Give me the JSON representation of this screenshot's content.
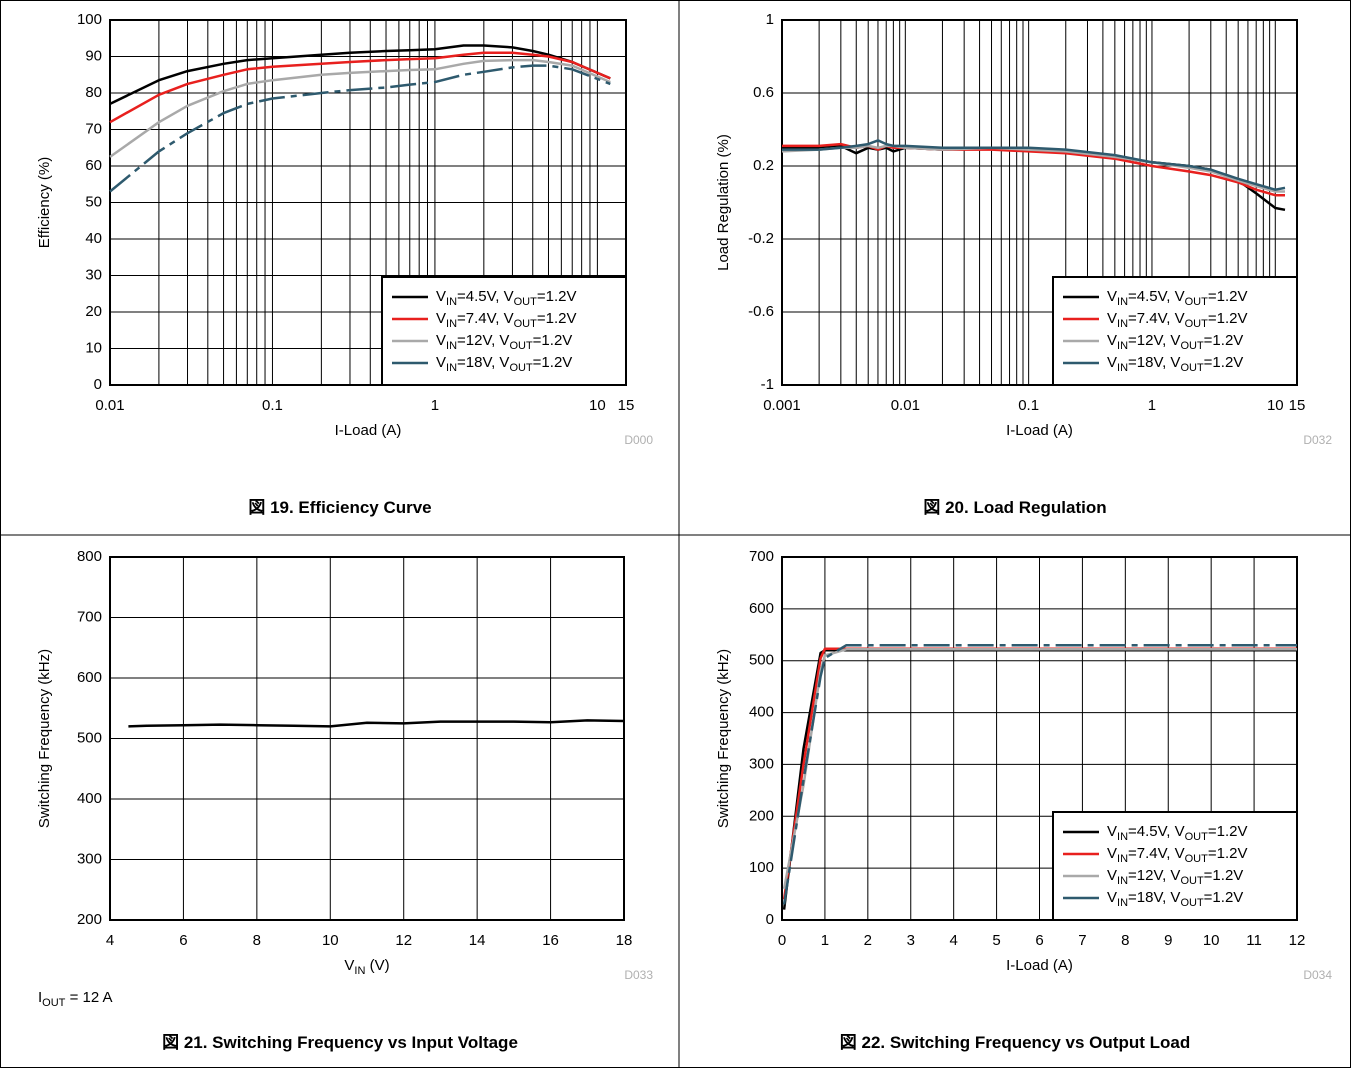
{
  "chart_data": [
    {
      "type": "line",
      "title": "図 19. Efficiency Curve",
      "xlabel": "I-Load (A)",
      "ylabel": "Efficiency (%)",
      "code": "D000",
      "xlog": true,
      "grid": true,
      "legend": "lower right",
      "xlim": [
        0.01,
        15
      ],
      "xticks": [
        0.01,
        0.1,
        1,
        10,
        15
      ],
      "ylim": [
        0,
        100
      ],
      "yticks": [
        0,
        10,
        20,
        30,
        40,
        50,
        60,
        70,
        80,
        90,
        100
      ],
      "x": [
        0.01,
        0.02,
        0.03,
        0.05,
        0.07,
        0.1,
        0.2,
        0.3,
        0.5,
        0.7,
        1,
        1.5,
        2,
        3,
        4,
        5,
        7,
        12
      ],
      "series": [
        {
          "name": "VIN=4.5V, VOUT=1.2V",
          "color": "#000000",
          "style": "solid",
          "values": [
            77,
            83.5,
            86,
            88,
            89,
            89.5,
            90.5,
            91,
            91.5,
            91.7,
            92,
            93,
            93,
            92.5,
            91.5,
            90.5,
            88.5,
            84
          ]
        },
        {
          "name": "VIN=7.4V, VOUT=1.2V",
          "color": "#e8201e",
          "style": "solid",
          "values": [
            72,
            79.5,
            82.5,
            85,
            86.5,
            87.2,
            88,
            88.5,
            89,
            89.3,
            89.5,
            90.5,
            91,
            91,
            90.5,
            90,
            88.5,
            84
          ]
        },
        {
          "name": "VIN=12V, VOUT=1.2V",
          "color": "#a9a9a9",
          "style": "solid",
          "values": [
            62.5,
            72,
            76.5,
            80.5,
            82.5,
            83.5,
            85,
            85.5,
            86,
            86.3,
            86.5,
            88,
            88.8,
            89,
            89,
            88.5,
            87.5,
            83
          ]
        },
        {
          "name": "VIN=18V, VOUT=1.2V",
          "color": "#2e5a6e",
          "style": "dashdot",
          "values": [
            53,
            64,
            69,
            74.5,
            77,
            78.5,
            80,
            80.8,
            81.5,
            82.3,
            83,
            85,
            85.8,
            87,
            87.5,
            87.5,
            86.5,
            82.5
          ]
        }
      ]
    },
    {
      "type": "line",
      "title": "図 20. Load Regulation",
      "xlabel": "I-Load (A)",
      "ylabel": "Load Regulation (%)",
      "code": "D032",
      "xlog": true,
      "grid": true,
      "legend": "lower right",
      "xlim": [
        0.001,
        15
      ],
      "xticks": [
        0.001,
        0.01,
        0.1,
        1,
        10,
        15
      ],
      "ylim": [
        -1,
        1
      ],
      "yticks": [
        -1,
        -0.6,
        -0.2,
        0.2,
        0.6,
        1
      ],
      "x": [
        0.001,
        0.002,
        0.003,
        0.004,
        0.005,
        0.006,
        0.007,
        0.008,
        0.01,
        0.02,
        0.05,
        0.1,
        0.2,
        0.5,
        1,
        2,
        3,
        5,
        7,
        10,
        12
      ],
      "series": [
        {
          "name": "VIN=4.5V, VOUT=1.2V",
          "color": "#000000",
          "style": "solid",
          "values": [
            0.3,
            0.3,
            0.31,
            0.27,
            0.3,
            0.29,
            0.3,
            0.28,
            0.3,
            0.29,
            0.3,
            0.29,
            0.28,
            0.25,
            0.22,
            0.2,
            0.18,
            0.12,
            0.05,
            -0.03,
            -0.04
          ]
        },
        {
          "name": "VIN=7.4V, VOUT=1.2V",
          "color": "#e8201e",
          "style": "solid",
          "values": [
            0.31,
            0.31,
            0.32,
            0.3,
            0.31,
            0.29,
            0.31,
            0.3,
            0.3,
            0.29,
            0.29,
            0.28,
            0.27,
            0.24,
            0.2,
            0.17,
            0.15,
            0.11,
            0.07,
            0.04,
            0.04
          ]
        },
        {
          "name": "VIN=12V, VOUT=1.2V",
          "color": "#a9a9a9",
          "style": "solid",
          "values": [
            0.28,
            0.29,
            0.3,
            0.3,
            0.31,
            0.3,
            0.31,
            0.31,
            0.3,
            0.29,
            0.3,
            0.29,
            0.28,
            0.25,
            0.22,
            0.19,
            0.17,
            0.12,
            0.09,
            0.06,
            0.06
          ]
        },
        {
          "name": "VIN=18V, VOUT=1.2V",
          "color": "#2e5a6e",
          "style": "solid",
          "values": [
            0.29,
            0.29,
            0.3,
            0.31,
            0.32,
            0.34,
            0.32,
            0.31,
            0.31,
            0.3,
            0.3,
            0.3,
            0.29,
            0.26,
            0.22,
            0.2,
            0.18,
            0.13,
            0.1,
            0.07,
            0.08
          ]
        }
      ]
    },
    {
      "type": "line",
      "title": "図 21. Switching Frequency vs Input Voltage",
      "xlabel": "VIN (V)",
      "ylabel": "Switching Frequency (kHz)",
      "code": "D033",
      "annotation": "IOUT = 12 A",
      "xlog": false,
      "grid": true,
      "xlim": [
        4,
        18
      ],
      "xticks": [
        4,
        6,
        8,
        10,
        12,
        14,
        16,
        18
      ],
      "ylim": [
        200,
        800
      ],
      "yticks": [
        200,
        300,
        400,
        500,
        600,
        700,
        800
      ],
      "x": [
        4.5,
        5,
        6,
        7,
        8,
        9,
        10,
        11,
        12,
        13,
        14,
        15,
        16,
        17,
        18
      ],
      "series": [
        {
          "color": "#000000",
          "style": "solid",
          "values": [
            520,
            521,
            522,
            523,
            522,
            521,
            520,
            526,
            525,
            528,
            528,
            528,
            527,
            530,
            529
          ]
        }
      ]
    },
    {
      "type": "line",
      "title": "図 22. Switching Frequency vs Output Load",
      "xlabel": "I-Load (A)",
      "ylabel": "Switching Frequency (kHz)",
      "code": "D034",
      "xlog": false,
      "grid": true,
      "legend": "lower right",
      "xlim": [
        0,
        12
      ],
      "xticks": [
        0,
        1,
        2,
        3,
        4,
        5,
        6,
        7,
        8,
        9,
        10,
        11,
        12
      ],
      "ylim": [
        0,
        700
      ],
      "yticks": [
        0,
        100,
        200,
        300,
        400,
        500,
        600,
        700
      ],
      "x": [
        0.05,
        0.5,
        0.9,
        1,
        1.5,
        12
      ],
      "series": [
        {
          "name": "VIN=4.5V, VOUT=1.2V",
          "color": "#000000",
          "style": "solid",
          "values": [
            20,
            330,
            515,
            520,
            520,
            520
          ]
        },
        {
          "name": "VIN=7.4V, VOUT=1.2V",
          "color": "#e8201e",
          "style": "solid",
          "values": [
            40,
            300,
            505,
            523,
            523,
            523
          ]
        },
        {
          "name": "VIN=12V, VOUT=1.2V",
          "color": "#a9a9a9",
          "style": "solid",
          "values": [
            60,
            260,
            480,
            510,
            522,
            522
          ]
        },
        {
          "name": "VIN=18V, VOUT=1.2V",
          "color": "#2e5a6e",
          "style": "dashdot",
          "values": [
            30,
            270,
            470,
            505,
            530,
            530
          ]
        }
      ]
    }
  ]
}
